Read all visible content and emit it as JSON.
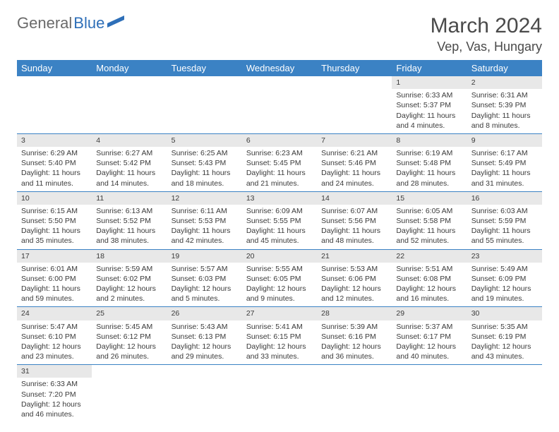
{
  "logo": {
    "text_gray": "General",
    "text_blue": "Blue"
  },
  "title": "March 2024",
  "location": "Vep, Vas, Hungary",
  "colors": {
    "header_bg": "#3b82c4",
    "header_text": "#ffffff",
    "daynum_bg": "#e8e8e8",
    "row_sep": "#3b82c4",
    "text": "#3a3a3a",
    "logo_gray": "#6a6a6a",
    "logo_blue": "#2e6fb8"
  },
  "fonts": {
    "title_size": 30,
    "location_size": 18,
    "dayhead_size": 13,
    "cell_size": 10.5
  },
  "day_names": [
    "Sunday",
    "Monday",
    "Tuesday",
    "Wednesday",
    "Thursday",
    "Friday",
    "Saturday"
  ],
  "weeks": [
    [
      null,
      null,
      null,
      null,
      null,
      {
        "n": "1",
        "sunrise": "Sunrise: 6:33 AM",
        "sunset": "Sunset: 5:37 PM",
        "daylight": "Daylight: 11 hours and 4 minutes."
      },
      {
        "n": "2",
        "sunrise": "Sunrise: 6:31 AM",
        "sunset": "Sunset: 5:39 PM",
        "daylight": "Daylight: 11 hours and 8 minutes."
      }
    ],
    [
      {
        "n": "3",
        "sunrise": "Sunrise: 6:29 AM",
        "sunset": "Sunset: 5:40 PM",
        "daylight": "Daylight: 11 hours and 11 minutes."
      },
      {
        "n": "4",
        "sunrise": "Sunrise: 6:27 AM",
        "sunset": "Sunset: 5:42 PM",
        "daylight": "Daylight: 11 hours and 14 minutes."
      },
      {
        "n": "5",
        "sunrise": "Sunrise: 6:25 AM",
        "sunset": "Sunset: 5:43 PM",
        "daylight": "Daylight: 11 hours and 18 minutes."
      },
      {
        "n": "6",
        "sunrise": "Sunrise: 6:23 AM",
        "sunset": "Sunset: 5:45 PM",
        "daylight": "Daylight: 11 hours and 21 minutes."
      },
      {
        "n": "7",
        "sunrise": "Sunrise: 6:21 AM",
        "sunset": "Sunset: 5:46 PM",
        "daylight": "Daylight: 11 hours and 24 minutes."
      },
      {
        "n": "8",
        "sunrise": "Sunrise: 6:19 AM",
        "sunset": "Sunset: 5:48 PM",
        "daylight": "Daylight: 11 hours and 28 minutes."
      },
      {
        "n": "9",
        "sunrise": "Sunrise: 6:17 AM",
        "sunset": "Sunset: 5:49 PM",
        "daylight": "Daylight: 11 hours and 31 minutes."
      }
    ],
    [
      {
        "n": "10",
        "sunrise": "Sunrise: 6:15 AM",
        "sunset": "Sunset: 5:50 PM",
        "daylight": "Daylight: 11 hours and 35 minutes."
      },
      {
        "n": "11",
        "sunrise": "Sunrise: 6:13 AM",
        "sunset": "Sunset: 5:52 PM",
        "daylight": "Daylight: 11 hours and 38 minutes."
      },
      {
        "n": "12",
        "sunrise": "Sunrise: 6:11 AM",
        "sunset": "Sunset: 5:53 PM",
        "daylight": "Daylight: 11 hours and 42 minutes."
      },
      {
        "n": "13",
        "sunrise": "Sunrise: 6:09 AM",
        "sunset": "Sunset: 5:55 PM",
        "daylight": "Daylight: 11 hours and 45 minutes."
      },
      {
        "n": "14",
        "sunrise": "Sunrise: 6:07 AM",
        "sunset": "Sunset: 5:56 PM",
        "daylight": "Daylight: 11 hours and 48 minutes."
      },
      {
        "n": "15",
        "sunrise": "Sunrise: 6:05 AM",
        "sunset": "Sunset: 5:58 PM",
        "daylight": "Daylight: 11 hours and 52 minutes."
      },
      {
        "n": "16",
        "sunrise": "Sunrise: 6:03 AM",
        "sunset": "Sunset: 5:59 PM",
        "daylight": "Daylight: 11 hours and 55 minutes."
      }
    ],
    [
      {
        "n": "17",
        "sunrise": "Sunrise: 6:01 AM",
        "sunset": "Sunset: 6:00 PM",
        "daylight": "Daylight: 11 hours and 59 minutes."
      },
      {
        "n": "18",
        "sunrise": "Sunrise: 5:59 AM",
        "sunset": "Sunset: 6:02 PM",
        "daylight": "Daylight: 12 hours and 2 minutes."
      },
      {
        "n": "19",
        "sunrise": "Sunrise: 5:57 AM",
        "sunset": "Sunset: 6:03 PM",
        "daylight": "Daylight: 12 hours and 5 minutes."
      },
      {
        "n": "20",
        "sunrise": "Sunrise: 5:55 AM",
        "sunset": "Sunset: 6:05 PM",
        "daylight": "Daylight: 12 hours and 9 minutes."
      },
      {
        "n": "21",
        "sunrise": "Sunrise: 5:53 AM",
        "sunset": "Sunset: 6:06 PM",
        "daylight": "Daylight: 12 hours and 12 minutes."
      },
      {
        "n": "22",
        "sunrise": "Sunrise: 5:51 AM",
        "sunset": "Sunset: 6:08 PM",
        "daylight": "Daylight: 12 hours and 16 minutes."
      },
      {
        "n": "23",
        "sunrise": "Sunrise: 5:49 AM",
        "sunset": "Sunset: 6:09 PM",
        "daylight": "Daylight: 12 hours and 19 minutes."
      }
    ],
    [
      {
        "n": "24",
        "sunrise": "Sunrise: 5:47 AM",
        "sunset": "Sunset: 6:10 PM",
        "daylight": "Daylight: 12 hours and 23 minutes."
      },
      {
        "n": "25",
        "sunrise": "Sunrise: 5:45 AM",
        "sunset": "Sunset: 6:12 PM",
        "daylight": "Daylight: 12 hours and 26 minutes."
      },
      {
        "n": "26",
        "sunrise": "Sunrise: 5:43 AM",
        "sunset": "Sunset: 6:13 PM",
        "daylight": "Daylight: 12 hours and 29 minutes."
      },
      {
        "n": "27",
        "sunrise": "Sunrise: 5:41 AM",
        "sunset": "Sunset: 6:15 PM",
        "daylight": "Daylight: 12 hours and 33 minutes."
      },
      {
        "n": "28",
        "sunrise": "Sunrise: 5:39 AM",
        "sunset": "Sunset: 6:16 PM",
        "daylight": "Daylight: 12 hours and 36 minutes."
      },
      {
        "n": "29",
        "sunrise": "Sunrise: 5:37 AM",
        "sunset": "Sunset: 6:17 PM",
        "daylight": "Daylight: 12 hours and 40 minutes."
      },
      {
        "n": "30",
        "sunrise": "Sunrise: 5:35 AM",
        "sunset": "Sunset: 6:19 PM",
        "daylight": "Daylight: 12 hours and 43 minutes."
      }
    ],
    [
      {
        "n": "31",
        "sunrise": "Sunrise: 6:33 AM",
        "sunset": "Sunset: 7:20 PM",
        "daylight": "Daylight: 12 hours and 46 minutes."
      },
      null,
      null,
      null,
      null,
      null,
      null
    ]
  ]
}
